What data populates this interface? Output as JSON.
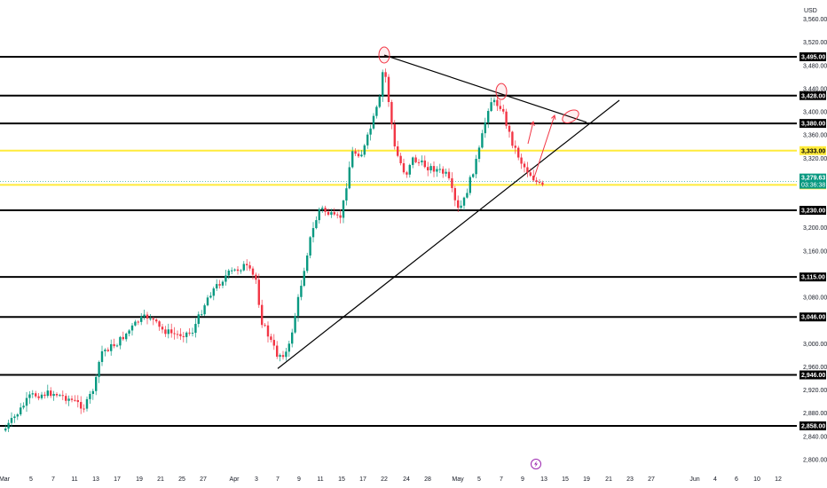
{
  "currency_label": "USD",
  "colors": {
    "up": "#089981",
    "down": "#f23645",
    "level_black": "#000000",
    "level_yellow": "#ffeb3b",
    "annotation_red": "#f23645",
    "current_price": "#089981",
    "grid_text": "#131722",
    "flash_icon": "#9c27b0"
  },
  "flash_icon": "lightning-bolt-icon",
  "chart_data": {
    "type": "candlestick",
    "instrument_currency": "USD",
    "y_axis": {
      "range": [
        2785,
        3555
      ],
      "ticks": [
        "2,800.00",
        "2,840.00",
        "2,880.00",
        "2,920.00",
        "2,960.00",
        "3,000.00",
        "3,080.00",
        "3,160.00",
        "3,200.00",
        "3,320.00",
        "3,360.00",
        "3,400.00",
        "3,440.00",
        "3,480.00",
        "3,520.00",
        "3,560.00"
      ]
    },
    "x_axis": {
      "ticks": [
        "Mar",
        "5",
        "7",
        "11",
        "13",
        "17",
        "19",
        "21",
        "25",
        "27",
        "Apr",
        "3",
        "7",
        "9",
        "11",
        "15",
        "17",
        "22",
        "24",
        "28",
        "May",
        "5",
        "7",
        "9",
        "13",
        "15",
        "19",
        "21",
        "23",
        "27",
        "Jun",
        "4",
        "6",
        "10",
        "12"
      ]
    },
    "horizontal_levels": [
      {
        "price": 3495,
        "label": "3,495.00",
        "color": "black"
      },
      {
        "price": 3428,
        "label": "3,428.00",
        "color": "black"
      },
      {
        "price": 3380,
        "label": "3,380.00",
        "color": "black"
      },
      {
        "price": 3333,
        "label": "3,333.00",
        "color": "yellow"
      },
      {
        "price": 3274,
        "label": "3,274.00",
        "color": "yellow"
      },
      {
        "price": 3230,
        "label": "3,230.00",
        "color": "black"
      },
      {
        "price": 3115,
        "label": "3,115.00",
        "color": "black"
      },
      {
        "price": 3046,
        "label": "3,046.00",
        "color": "black"
      },
      {
        "price": 2946,
        "label": "2,946.00",
        "color": "black"
      },
      {
        "price": 2858,
        "label": "2,858.00",
        "color": "black"
      }
    ],
    "current_price": {
      "price": "3,279.63",
      "countdown": "03:36:38"
    },
    "trendlines": [
      {
        "from": {
          "date": "Apr 7",
          "price": 2957
        },
        "to": {
          "date": "May 22",
          "price": 3420
        }
      },
      {
        "from": {
          "date": "Apr 22",
          "price": 3498
        },
        "to": {
          "date": "May 19",
          "price": 3382
        }
      }
    ],
    "circled_points": [
      {
        "date": "Apr 22",
        "price": 3498
      },
      {
        "date": "May 7",
        "price": 3435
      },
      {
        "date": "May 16",
        "price": 3392
      }
    ],
    "projection_arrows": [
      {
        "from": {
          "date": "May 10",
          "price": 3345
        },
        "to": {
          "date": "May 11",
          "price": 3383
        }
      },
      {
        "from": {
          "date": "May 11",
          "price": 3282
        },
        "to": {
          "date": "May 14",
          "price": 3394
        }
      }
    ],
    "price_path": [
      {
        "date": "Feb 28",
        "price": 2850
      },
      {
        "date": "Mar 3",
        "price": 2885
      },
      {
        "date": "Mar 5",
        "price": 2910
      },
      {
        "date": "Mar 7",
        "price": 2915
      },
      {
        "date": "Mar 10",
        "price": 2905
      },
      {
        "date": "Mar 12",
        "price": 2890
      },
      {
        "date": "Mar 13",
        "price": 2930
      },
      {
        "date": "Mar 14",
        "price": 2985
      },
      {
        "date": "Mar 17",
        "price": 3000
      },
      {
        "date": "Mar 19",
        "price": 3040
      },
      {
        "date": "Mar 20",
        "price": 3048
      },
      {
        "date": "Mar 21",
        "price": 3025
      },
      {
        "date": "Mar 24",
        "price": 3015
      },
      {
        "date": "Mar 26",
        "price": 3020
      },
      {
        "date": "Mar 28",
        "price": 3085
      },
      {
        "date": "Mar 31",
        "price": 3120
      },
      {
        "date": "Apr 1",
        "price": 3125
      },
      {
        "date": "Apr 2",
        "price": 3135
      },
      {
        "date": "Apr 3",
        "price": 3110
      },
      {
        "date": "Apr 4",
        "price": 3040
      },
      {
        "date": "Apr 7",
        "price": 2980
      },
      {
        "date": "Apr 8",
        "price": 2985
      },
      {
        "date": "Apr 9",
        "price": 3080
      },
      {
        "date": "Apr 10",
        "price": 3175
      },
      {
        "date": "Apr 11",
        "price": 3235
      },
      {
        "date": "Apr 14",
        "price": 3215
      },
      {
        "date": "Apr 15",
        "price": 3220
      },
      {
        "date": "Apr 16",
        "price": 3330
      },
      {
        "date": "Apr 17",
        "price": 3328
      },
      {
        "date": "Apr 21",
        "price": 3420
      },
      {
        "date": "Apr 22",
        "price": 3485
      },
      {
        "date": "Apr 23",
        "price": 3335
      },
      {
        "date": "Apr 24",
        "price": 3290
      },
      {
        "date": "Apr 25",
        "price": 3320
      },
      {
        "date": "Apr 28",
        "price": 3305
      },
      {
        "date": "Apr 29",
        "price": 3300
      },
      {
        "date": "Apr 30",
        "price": 3290
      },
      {
        "date": "May 1",
        "price": 3230
      },
      {
        "date": "May 2",
        "price": 3240
      },
      {
        "date": "May 5",
        "price": 3330
      },
      {
        "date": "May 6",
        "price": 3420
      },
      {
        "date": "May 7",
        "price": 3410
      },
      {
        "date": "May 8",
        "price": 3350
      },
      {
        "date": "May 9",
        "price": 3310
      },
      {
        "date": "May 12",
        "price": 3275
      },
      {
        "date": "May 13",
        "price": 3270
      }
    ]
  }
}
